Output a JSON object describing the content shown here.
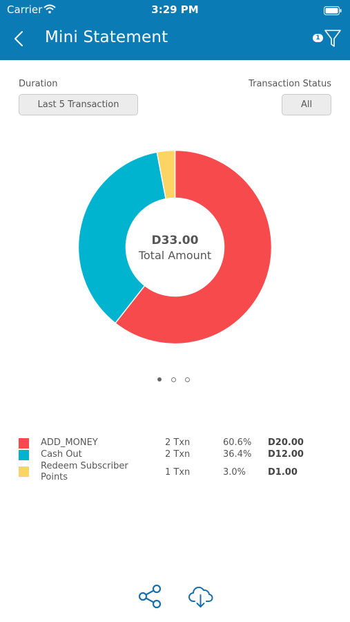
{
  "status_bar": {
    "carrier": "Carrier",
    "time": "3:29 PM"
  },
  "header": {
    "title": "Mini Statement",
    "filter_badge": "1"
  },
  "filters": {
    "duration_label": "Duration",
    "duration_value": "Last 5 Transaction",
    "status_label": "Transaction Status",
    "status_value": "All"
  },
  "summary": {
    "total_amount": "D33.00",
    "total_label": "Total Amount"
  },
  "pager": {
    "pages": 3,
    "active": 0
  },
  "chart_data": {
    "type": "pie",
    "categories": [
      "ADD_MONEY",
      "Cash Out",
      "Redeem Subscriber Points"
    ],
    "values": [
      60.6,
      36.4,
      3.0
    ],
    "colors": [
      "#f64a4c",
      "#00b4d0",
      "#fcd464"
    ]
  },
  "legend": [
    {
      "name": "ADD_MONEY",
      "txns": "2 Txn",
      "percent": "60.6%",
      "amount": "D20.00",
      "color": "#f64a4c"
    },
    {
      "name": "Cash Out",
      "txns": "2 Txn",
      "percent": "36.4%",
      "amount": "D12.00",
      "color": "#00b4d0"
    },
    {
      "name_line1": "Redeem Subscriber",
      "name_line2": "Points",
      "txns": "1 Txn",
      "percent": "3.0%",
      "amount": "D1.00",
      "color": "#fcd464"
    }
  ],
  "colors": {
    "header": "#0b7bb5",
    "icon": "#1a6fa8"
  },
  "icons": [
    "back-arrow-icon",
    "filter-icon",
    "share-icon",
    "cloud-download-icon",
    "wifi-icon",
    "battery-icon"
  ]
}
